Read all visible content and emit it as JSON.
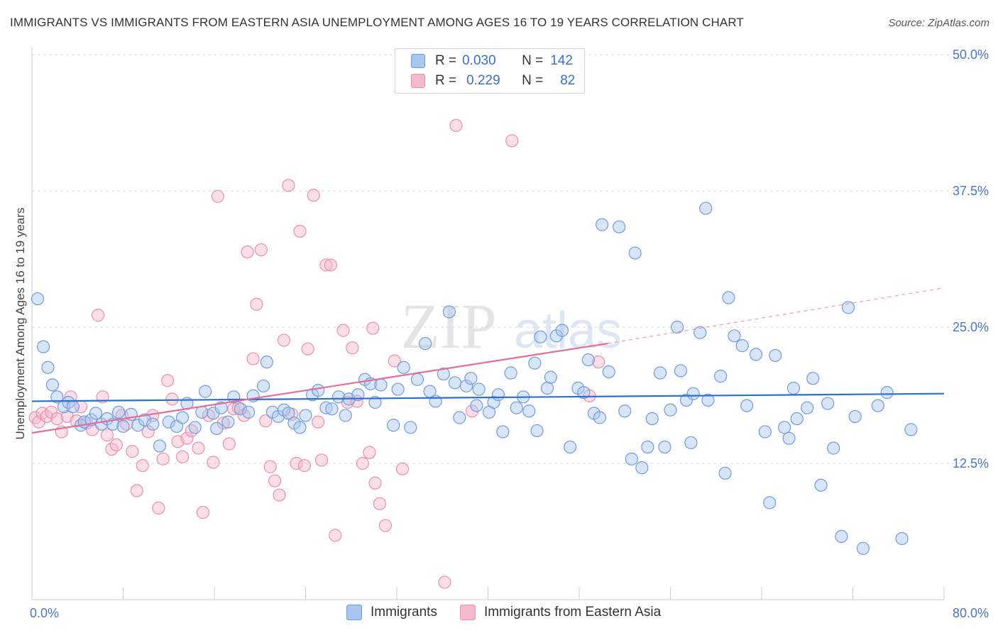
{
  "header": {
    "title": "IMMIGRANTS VS IMMIGRANTS FROM EASTERN ASIA UNEMPLOYMENT AMONG AGES 16 TO 19 YEARS CORRELATION CHART",
    "source": "Source: ZipAtlas.com"
  },
  "legend": {
    "row1": {
      "r_label": "R =",
      "r_value": "0.030",
      "n_label": "N =",
      "n_value": "142"
    },
    "row2": {
      "r_label": "R =",
      "r_value": "0.229",
      "n_label": "N =",
      "n_value": "82"
    }
  },
  "watermark": {
    "zip": "ZIP",
    "atlas": "atlas"
  },
  "colors": {
    "blue_fill": "#a9c6ee",
    "blue_stroke": "#6f9be0",
    "blue_line": "#2a6fd3",
    "pink_fill": "#f4b9cb",
    "pink_stroke": "#ea8fac",
    "pink_line": "#e56e97",
    "tick_text": "#4a78c8",
    "grid": "#d8d8d8"
  },
  "chart_data": {
    "type": "scatter",
    "title": "IMMIGRANTS VS IMMIGRANTS FROM EASTERN ASIA UNEMPLOYMENT AMONG AGES 16 TO 19 YEARS CORRELATION CHART",
    "xlabel": "",
    "ylabel": "Unemployment Among Ages 16 to 19 years",
    "xlim": [
      0,
      80
    ],
    "ylim": [
      0,
      50
    ],
    "x_tick_labels": [
      "0.0%",
      "80.0%"
    ],
    "y_ticks": [
      12.5,
      25.0,
      37.5,
      50.0
    ],
    "y_tick_labels": [
      "12.5%",
      "25.0%",
      "37.5%",
      "50.0%"
    ],
    "legend_bottom": [
      "Immigrants",
      "Immigrants from Eastern Asia"
    ],
    "series": [
      {
        "name": "Immigrants",
        "r": 0.03,
        "n": 142,
        "trend": {
          "x0": 0,
          "y0": 18.2,
          "x1": 80,
          "y1": 18.9
        },
        "points": [
          [
            0.5,
            27.6
          ],
          [
            1.0,
            23.2
          ],
          [
            1.4,
            21.3
          ],
          [
            1.8,
            19.7
          ],
          [
            2.2,
            18.6
          ],
          [
            2.8,
            17.7
          ],
          [
            3.2,
            18.1
          ],
          [
            3.6,
            17.7
          ],
          [
            4.3,
            16.0
          ],
          [
            4.6,
            16.3
          ],
          [
            5.2,
            16.5
          ],
          [
            5.6,
            17.1
          ],
          [
            6.1,
            16.1
          ],
          [
            6.6,
            16.6
          ],
          [
            7.1,
            16.1
          ],
          [
            7.6,
            17.2
          ],
          [
            8.0,
            15.9
          ],
          [
            8.7,
            17.0
          ],
          [
            9.3,
            16.0
          ],
          [
            9.9,
            16.5
          ],
          [
            10.6,
            16.1
          ],
          [
            11.2,
            14.1
          ],
          [
            12.0,
            16.3
          ],
          [
            12.7,
            15.9
          ],
          [
            13.2,
            16.7
          ],
          [
            13.6,
            18.0
          ],
          [
            14.3,
            15.8
          ],
          [
            14.9,
            17.2
          ],
          [
            15.2,
            19.1
          ],
          [
            15.9,
            17.1
          ],
          [
            16.2,
            15.7
          ],
          [
            16.6,
            17.6
          ],
          [
            17.2,
            16.3
          ],
          [
            17.7,
            18.6
          ],
          [
            18.3,
            17.5
          ],
          [
            19.0,
            17.2
          ],
          [
            19.4,
            18.7
          ],
          [
            20.3,
            19.6
          ],
          [
            20.6,
            21.8
          ],
          [
            21.1,
            17.2
          ],
          [
            21.6,
            16.8
          ],
          [
            22.1,
            17.4
          ],
          [
            22.5,
            17.1
          ],
          [
            23.0,
            16.2
          ],
          [
            23.5,
            15.8
          ],
          [
            24.0,
            16.9
          ],
          [
            24.6,
            18.8
          ],
          [
            25.1,
            19.2
          ],
          [
            25.8,
            17.6
          ],
          [
            26.3,
            17.5
          ],
          [
            26.9,
            18.6
          ],
          [
            27.5,
            16.9
          ],
          [
            27.8,
            18.4
          ],
          [
            28.6,
            18.8
          ],
          [
            29.2,
            20.2
          ],
          [
            29.7,
            19.8
          ],
          [
            30.1,
            18.1
          ],
          [
            30.6,
            19.7
          ],
          [
            31.7,
            16.0
          ],
          [
            32.1,
            19.3
          ],
          [
            32.6,
            21.3
          ],
          [
            33.2,
            15.8
          ],
          [
            33.8,
            20.2
          ],
          [
            34.5,
            23.5
          ],
          [
            34.9,
            19.1
          ],
          [
            35.4,
            18.2
          ],
          [
            36.1,
            20.7
          ],
          [
            36.6,
            26.4
          ],
          [
            37.1,
            19.9
          ],
          [
            37.5,
            16.7
          ],
          [
            38.1,
            19.6
          ],
          [
            38.5,
            20.3
          ],
          [
            39.2,
            19.3
          ],
          [
            40.1,
            17.2
          ],
          [
            40.5,
            18.1
          ],
          [
            40.9,
            18.8
          ],
          [
            41.3,
            15.4
          ],
          [
            42.0,
            20.8
          ],
          [
            42.5,
            17.6
          ],
          [
            43.1,
            18.6
          ],
          [
            43.6,
            17.3
          ],
          [
            44.1,
            21.7
          ],
          [
            44.6,
            24.1
          ],
          [
            45.2,
            19.4
          ],
          [
            45.5,
            20.4
          ],
          [
            46.0,
            24.2
          ],
          [
            46.5,
            24.7
          ],
          [
            47.2,
            14.0
          ],
          [
            47.9,
            19.4
          ],
          [
            48.4,
            19.0
          ],
          [
            48.8,
            22.0
          ],
          [
            49.3,
            17.1
          ],
          [
            49.8,
            16.7
          ],
          [
            50.0,
            34.4
          ],
          [
            50.6,
            20.9
          ],
          [
            51.5,
            34.2
          ],
          [
            52.0,
            17.3
          ],
          [
            52.6,
            12.9
          ],
          [
            52.9,
            31.8
          ],
          [
            53.5,
            12.1
          ],
          [
            54.0,
            14.0
          ],
          [
            54.4,
            16.6
          ],
          [
            55.1,
            20.8
          ],
          [
            55.5,
            14.0
          ],
          [
            56.0,
            17.4
          ],
          [
            56.6,
            25.0
          ],
          [
            56.9,
            21.0
          ],
          [
            57.4,
            18.3
          ],
          [
            58.0,
            18.9
          ],
          [
            58.6,
            24.5
          ],
          [
            59.1,
            35.9
          ],
          [
            59.3,
            18.3
          ],
          [
            60.4,
            20.5
          ],
          [
            60.8,
            11.6
          ],
          [
            61.1,
            27.7
          ],
          [
            61.6,
            24.2
          ],
          [
            62.3,
            23.3
          ],
          [
            62.7,
            17.8
          ],
          [
            63.5,
            22.5
          ],
          [
            64.3,
            15.4
          ],
          [
            64.7,
            8.9
          ],
          [
            65.2,
            22.4
          ],
          [
            66.0,
            15.8
          ],
          [
            66.4,
            14.8
          ],
          [
            67.1,
            16.6
          ],
          [
            68.0,
            17.6
          ],
          [
            68.5,
            20.3
          ],
          [
            69.2,
            10.5
          ],
          [
            69.8,
            18.0
          ],
          [
            70.3,
            13.9
          ],
          [
            71.0,
            5.8
          ],
          [
            71.6,
            26.8
          ],
          [
            72.2,
            16.8
          ],
          [
            72.9,
            4.7
          ],
          [
            74.2,
            17.8
          ],
          [
            75.0,
            19.0
          ],
          [
            76.3,
            5.6
          ],
          [
            77.1,
            15.6
          ],
          [
            66.8,
            19.4
          ],
          [
            57.8,
            14.4
          ],
          [
            44.3,
            15.5
          ],
          [
            39.0,
            17.8
          ]
        ]
      },
      {
        "name": "Immigrants from Eastern Asia",
        "r": 0.229,
        "n": 82,
        "trend": {
          "x0": 0,
          "y0": 15.3,
          "x1": 50.5,
          "y1": 23.5
        },
        "trend_dashed": {
          "x0": 50.5,
          "y0": 23.5,
          "x1": 80,
          "y1": 28.6
        },
        "points": [
          [
            0.3,
            16.7
          ],
          [
            0.6,
            16.3
          ],
          [
            0.9,
            17.1
          ],
          [
            1.3,
            16.8
          ],
          [
            1.7,
            17.2
          ],
          [
            2.2,
            16.6
          ],
          [
            2.6,
            15.4
          ],
          [
            3.1,
            16.8
          ],
          [
            3.4,
            18.6
          ],
          [
            3.9,
            16.4
          ],
          [
            4.3,
            17.7
          ],
          [
            4.8,
            16.2
          ],
          [
            5.3,
            15.6
          ],
          [
            5.8,
            26.1
          ],
          [
            6.2,
            18.6
          ],
          [
            6.6,
            15.1
          ],
          [
            7.0,
            13.8
          ],
          [
            7.4,
            14.2
          ],
          [
            7.9,
            16.9
          ],
          [
            8.3,
            16.1
          ],
          [
            8.8,
            13.6
          ],
          [
            9.2,
            10.0
          ],
          [
            9.7,
            12.3
          ],
          [
            10.2,
            15.4
          ],
          [
            10.6,
            16.9
          ],
          [
            11.1,
            8.4
          ],
          [
            11.5,
            12.9
          ],
          [
            11.9,
            20.1
          ],
          [
            12.3,
            18.4
          ],
          [
            12.8,
            14.5
          ],
          [
            13.2,
            13.1
          ],
          [
            13.6,
            14.8
          ],
          [
            14.0,
            15.5
          ],
          [
            14.6,
            13.9
          ],
          [
            15.0,
            8.0
          ],
          [
            15.5,
            16.9
          ],
          [
            15.9,
            12.6
          ],
          [
            16.3,
            37.0
          ],
          [
            16.8,
            16.2
          ],
          [
            17.3,
            14.3
          ],
          [
            17.7,
            17.5
          ],
          [
            18.1,
            17.6
          ],
          [
            18.6,
            16.9
          ],
          [
            18.9,
            31.9
          ],
          [
            19.4,
            22.1
          ],
          [
            19.7,
            27.1
          ],
          [
            20.1,
            32.1
          ],
          [
            20.5,
            16.4
          ],
          [
            20.9,
            12.2
          ],
          [
            21.3,
            10.9
          ],
          [
            21.7,
            9.6
          ],
          [
            22.1,
            23.8
          ],
          [
            22.5,
            38.0
          ],
          [
            22.8,
            17.0
          ],
          [
            23.2,
            12.5
          ],
          [
            23.5,
            33.8
          ],
          [
            23.9,
            12.3
          ],
          [
            24.2,
            23.0
          ],
          [
            24.7,
            37.1
          ],
          [
            25.1,
            16.3
          ],
          [
            25.4,
            12.8
          ],
          [
            25.8,
            30.7
          ],
          [
            26.2,
            30.7
          ],
          [
            26.6,
            5.9
          ],
          [
            27.3,
            24.7
          ],
          [
            27.7,
            18.1
          ],
          [
            28.1,
            23.1
          ],
          [
            28.5,
            18.2
          ],
          [
            29.0,
            12.5
          ],
          [
            29.6,
            13.5
          ],
          [
            29.9,
            24.9
          ],
          [
            30.1,
            10.7
          ],
          [
            30.5,
            8.8
          ],
          [
            31.0,
            6.8
          ],
          [
            31.8,
            21.9
          ],
          [
            32.5,
            12.0
          ],
          [
            36.2,
            1.6
          ],
          [
            37.2,
            43.5
          ],
          [
            42.1,
            42.1
          ],
          [
            48.9,
            18.7
          ],
          [
            49.7,
            21.8
          ],
          [
            38.6,
            17.3
          ]
        ]
      }
    ]
  }
}
